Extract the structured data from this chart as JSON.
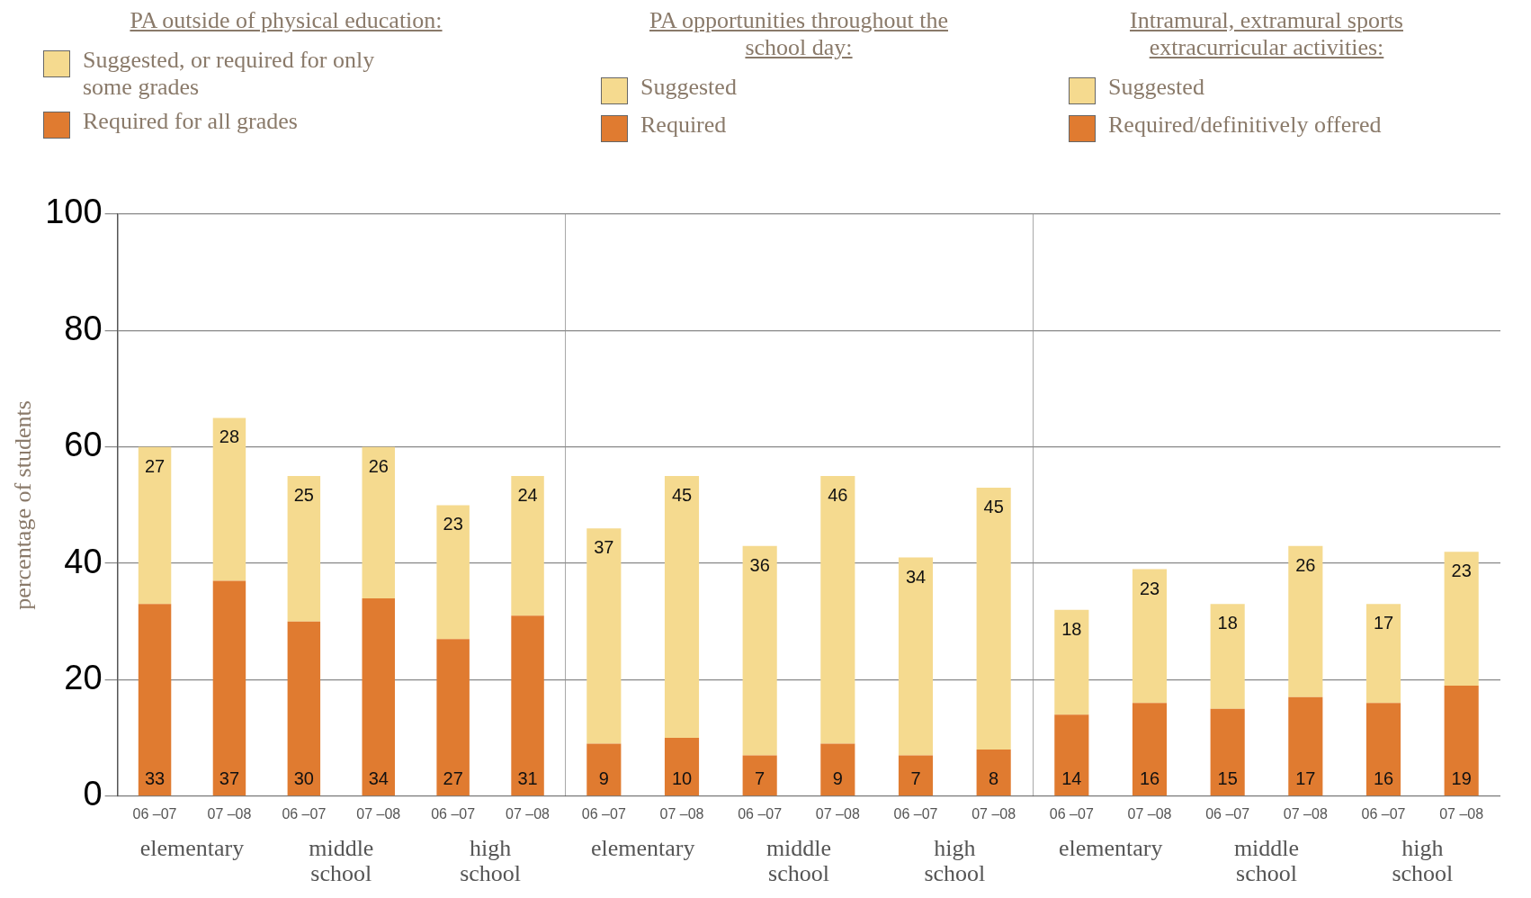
{
  "chart_data": [
    {
      "type": "bar",
      "stacked": true,
      "legend": "top",
      "legend_title": "PA outside of physical education:",
      "ylabel": "percentage of students",
      "ylim": [
        0,
        100
      ],
      "yticks": [
        0,
        20,
        40,
        60,
        80,
        100
      ],
      "grid": "y",
      "data_labels": true,
      "categories": [
        "06 –07",
        "07 –08",
        "06 –07",
        "07 –08",
        "06 –07",
        "07 –08"
      ],
      "series": [
        {
          "name": "Required for all grades",
          "color": "#e07b30",
          "values": [
            33,
            37,
            30,
            34,
            27,
            31
          ]
        },
        {
          "name": "Suggested, or required for only some grades",
          "color": "#f5da8f",
          "values": [
            27,
            28,
            25,
            26,
            23,
            24
          ]
        }
      ],
      "annotations": [
        "elementary",
        "middle school",
        "high school"
      ]
    },
    {
      "type": "bar",
      "stacked": true,
      "legend": "top",
      "legend_title": "PA opportunities throughout the school day:",
      "ylim": [
        0,
        100
      ],
      "yticks": [
        0,
        20,
        40,
        60,
        80,
        100
      ],
      "grid": "y",
      "data_labels": true,
      "tick_labels": "x",
      "categories": [
        "06 –07",
        "07 –08",
        "06 –07",
        "07 –08",
        "06 –07",
        "07 –08"
      ],
      "series": [
        {
          "name": "Required",
          "color": "#e07b30",
          "values": [
            9,
            10,
            7,
            9,
            7,
            8
          ]
        },
        {
          "name": "Suggested",
          "color": "#f5da8f",
          "values": [
            37,
            45,
            36,
            46,
            34,
            45
          ]
        }
      ],
      "annotations": [
        "elementary",
        "middle school",
        "high school"
      ]
    },
    {
      "type": "bar",
      "stacked": true,
      "legend": "top",
      "legend_title": "Intramural, extramural sports extracurricular activities:",
      "ylim": [
        0,
        100
      ],
      "yticks": [
        0,
        20,
        40,
        60,
        80,
        100
      ],
      "grid": "y",
      "data_labels": true,
      "tick_labels": "x",
      "categories": [
        "06 –07",
        "07 –08",
        "06 –07",
        "07 –08",
        "06 –07",
        "07 –08"
      ],
      "series": [
        {
          "name": "Required/definitively offered",
          "color": "#e07b30",
          "values": [
            14,
            16,
            15,
            17,
            16,
            19
          ]
        },
        {
          "name": "Suggested",
          "color": "#f5da8f",
          "values": [
            18,
            23,
            18,
            26,
            17,
            23
          ]
        }
      ],
      "annotations": [
        "elementary",
        "middle school",
        "high school"
      ]
    }
  ]
}
